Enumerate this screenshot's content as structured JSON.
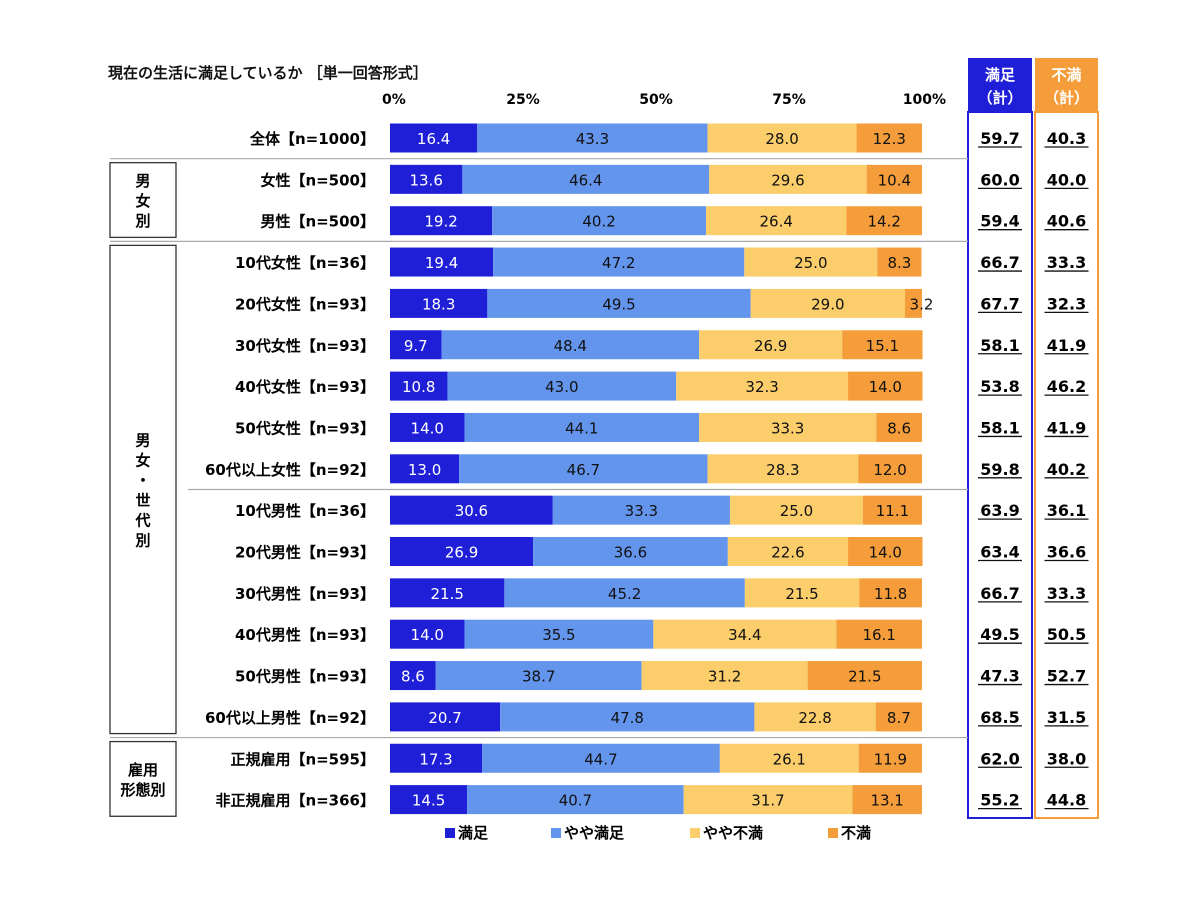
{
  "chart_data": {
    "type": "bar",
    "title": "現在の生活に満足しているか ［単一回答形式］",
    "xticks": [
      "0%",
      "25%",
      "50%",
      "75%",
      "100%"
    ],
    "xlim": [
      0,
      100
    ],
    "stacked": true,
    "grid": false,
    "legend_position": "bottom",
    "series_names": [
      "満足",
      "やや満足",
      "やや不満",
      "不満"
    ],
    "colors": [
      "#1f1fd8",
      "#6495ed",
      "#fbcd6b",
      "#f49d3a"
    ],
    "label_colors": [
      "#ffffff",
      "#111111",
      "#111111",
      "#111111"
    ],
    "summary_headers": [
      {
        "line1": "満足",
        "line2": "（計）",
        "color": "#1f1fd8"
      },
      {
        "line1": "不満",
        "line2": "（計）",
        "color": "#f49d3a"
      }
    ],
    "groups": [
      {
        "label": "",
        "start": 0,
        "end": 0
      },
      {
        "label": "男女別",
        "start": 1,
        "end": 2
      },
      {
        "label": "男女・世代別",
        "start": 3,
        "end": 14
      },
      {
        "label": "雇用形態別",
        "start": 15,
        "end": 16
      }
    ],
    "rows": [
      {
        "label": "全体【n=1000】",
        "values": [
          16.4,
          43.3,
          28.0,
          12.3
        ],
        "sat": "59.7",
        "dis": "40.3"
      },
      {
        "label": "女性【n=500】",
        "values": [
          13.6,
          46.4,
          29.6,
          10.4
        ],
        "sat": "60.0",
        "dis": "40.0"
      },
      {
        "label": "男性【n=500】",
        "values": [
          19.2,
          40.2,
          26.4,
          14.2
        ],
        "sat": "59.4",
        "dis": "40.6"
      },
      {
        "label": "10代女性【n=36】",
        "values": [
          19.4,
          47.2,
          25.0,
          8.3
        ],
        "sat": "66.7",
        "dis": "33.3"
      },
      {
        "label": "20代女性【n=93】",
        "values": [
          18.3,
          49.5,
          29.0,
          3.2
        ],
        "sat": "67.7",
        "dis": "32.3"
      },
      {
        "label": "30代女性【n=93】",
        "values": [
          9.7,
          48.4,
          26.9,
          15.1
        ],
        "sat": "58.1",
        "dis": "41.9"
      },
      {
        "label": "40代女性【n=93】",
        "values": [
          10.8,
          43.0,
          32.3,
          14.0
        ],
        "sat": "53.8",
        "dis": "46.2"
      },
      {
        "label": "50代女性【n=93】",
        "values": [
          14.0,
          44.1,
          33.3,
          8.6
        ],
        "sat": "58.1",
        "dis": "41.9"
      },
      {
        "label": "60代以上女性【n=92】",
        "values": [
          13.0,
          46.7,
          28.3,
          12.0
        ],
        "sat": "59.8",
        "dis": "40.2"
      },
      {
        "label": "10代男性【n=36】",
        "values": [
          30.6,
          33.3,
          25.0,
          11.1
        ],
        "sat": "63.9",
        "dis": "36.1"
      },
      {
        "label": "20代男性【n=93】",
        "values": [
          26.9,
          36.6,
          22.6,
          14.0
        ],
        "sat": "63.4",
        "dis": "36.6"
      },
      {
        "label": "30代男性【n=93】",
        "values": [
          21.5,
          45.2,
          21.5,
          11.8
        ],
        "sat": "66.7",
        "dis": "33.3"
      },
      {
        "label": "40代男性【n=93】",
        "values": [
          14.0,
          35.5,
          34.4,
          16.1
        ],
        "sat": "49.5",
        "dis": "50.5"
      },
      {
        "label": "50代男性【n=93】",
        "values": [
          8.6,
          38.7,
          31.2,
          21.5
        ],
        "sat": "47.3",
        "dis": "52.7"
      },
      {
        "label": "60代以上男性【n=92】",
        "values": [
          20.7,
          47.8,
          22.8,
          8.7
        ],
        "sat": "68.5",
        "dis": "31.5"
      },
      {
        "label": "正規雇用【n=595】",
        "values": [
          17.3,
          44.7,
          26.1,
          11.9
        ],
        "sat": "62.0",
        "dis": "38.0"
      },
      {
        "label": "非正規雇用【n=366】",
        "values": [
          14.5,
          40.7,
          31.7,
          13.1
        ],
        "sat": "55.2",
        "dis": "44.8"
      }
    ]
  }
}
